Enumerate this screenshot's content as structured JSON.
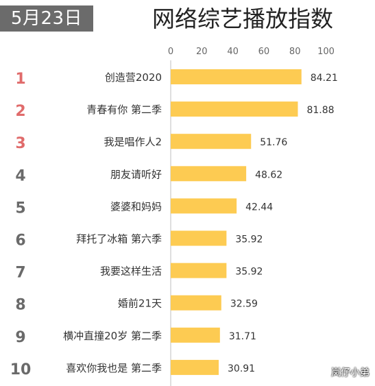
{
  "header": {
    "date": "5月23日",
    "title": "网络综艺播放指数"
  },
  "watermark": "岚仔小弟",
  "colors": {
    "bar": "#fdcb52",
    "rank_top3": "#e06b6b",
    "rank_other": "#6a6a6a",
    "axis_text": "#666666",
    "axis_line": "#bfbfbf"
  },
  "chart_data": {
    "type": "bar",
    "orientation": "horizontal",
    "title": "网络综艺播放指数",
    "xlim": [
      0,
      100
    ],
    "xticks": [
      "0",
      "20",
      "40",
      "60",
      "80",
      "100"
    ],
    "grid": false,
    "ranks": [
      "1",
      "2",
      "3",
      "4",
      "5",
      "6",
      "7",
      "8",
      "9",
      "10"
    ],
    "categories": [
      "创造营2020",
      "青春有你 第二季",
      "我是唱作人2",
      "朋友请听好",
      "婆婆和妈妈",
      "拜托了冰箱 第六季",
      "我要这样生活",
      "婚前21天",
      "横冲直撞20岁 第二季",
      "喜欢你我也是 第二季"
    ],
    "values": [
      84.21,
      81.88,
      51.76,
      48.62,
      42.44,
      35.92,
      35.92,
      32.59,
      31.71,
      30.91
    ],
    "value_labels": [
      "84.21",
      "81.88",
      "51.76",
      "48.62",
      "42.44",
      "35.92",
      "35.92",
      "32.59",
      "31.71",
      "30.91"
    ]
  }
}
